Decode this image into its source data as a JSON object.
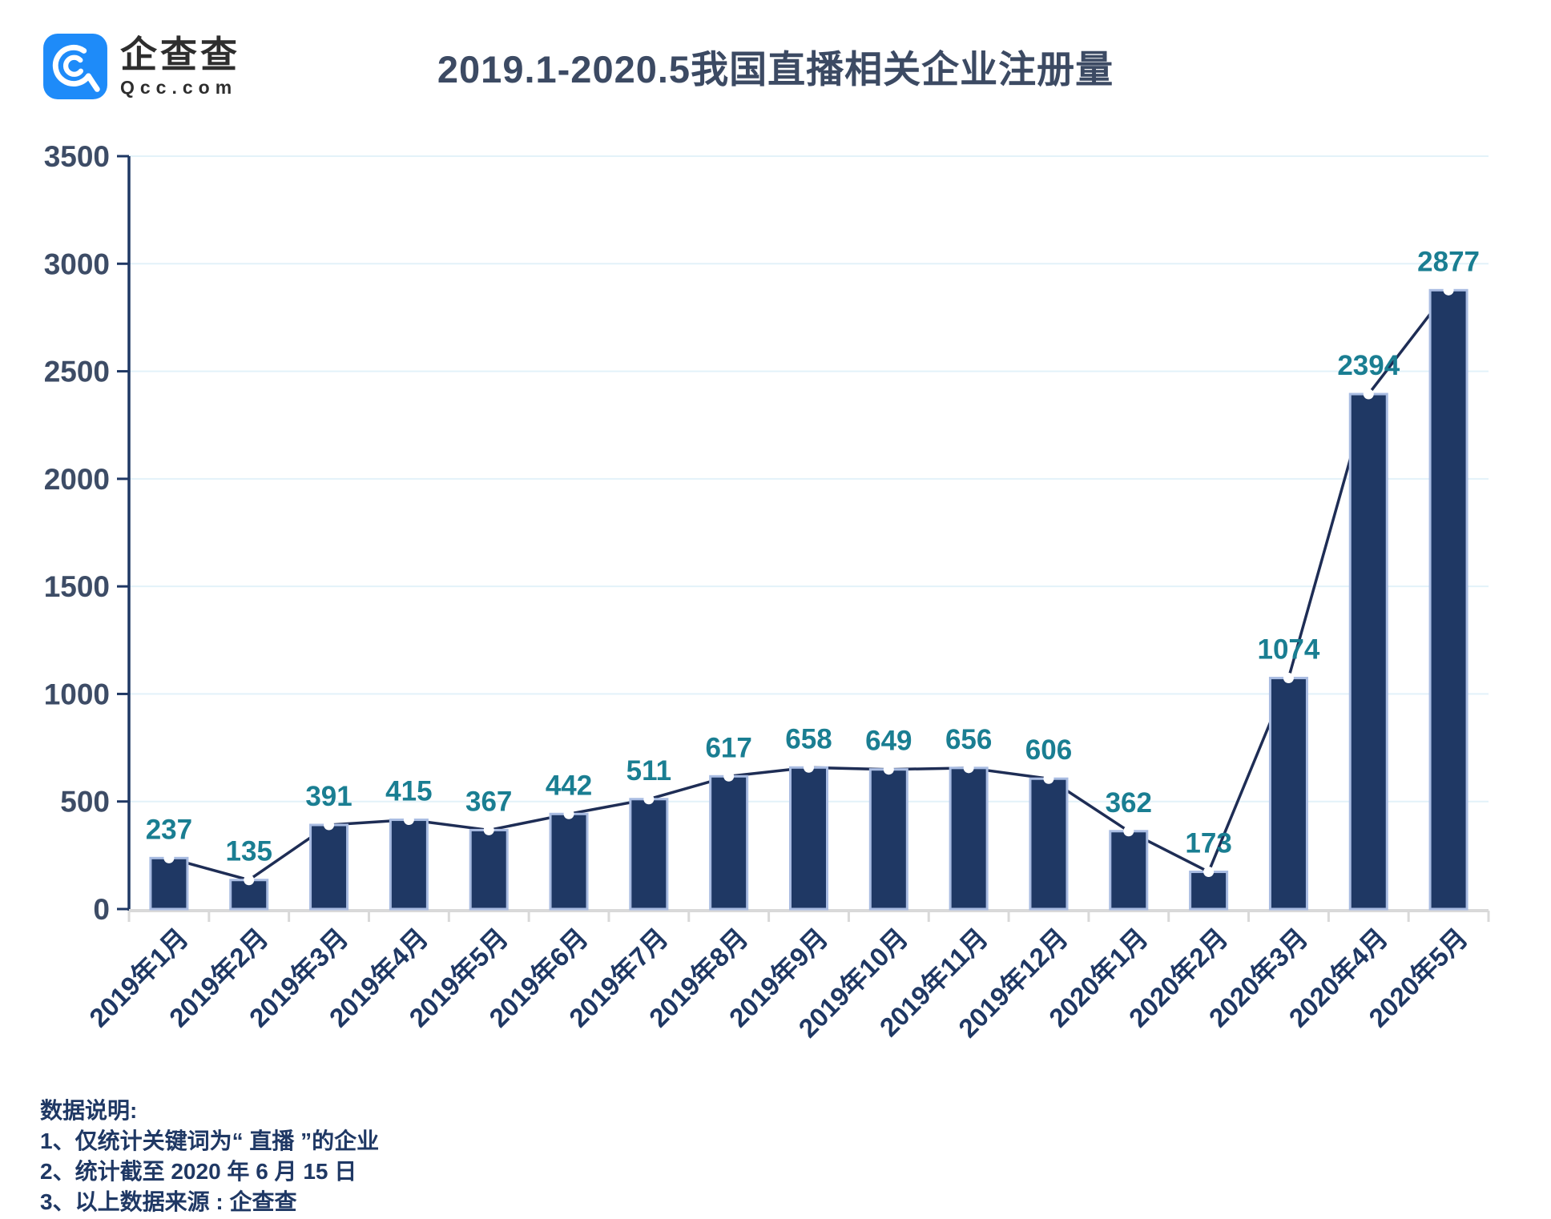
{
  "logo": {
    "name": "企查查",
    "domain": "Qcc.com"
  },
  "title": "2019.1-2020.5我国直播相关企业注册量",
  "chart_data": {
    "type": "bar",
    "overlay": "line",
    "title": "2019.1-2020.5我国直播相关企业注册量",
    "categories": [
      "2019年1月",
      "2019年2月",
      "2019年3月",
      "2019年4月",
      "2019年5月",
      "2019年6月",
      "2019年7月",
      "2019年8月",
      "2019年9月",
      "2019年10月",
      "2019年11月",
      "2019年12月",
      "2020年1月",
      "2020年2月",
      "2020年3月",
      "2020年4月",
      "2020年5月"
    ],
    "values": [
      237,
      135,
      391,
      415,
      367,
      442,
      511,
      617,
      658,
      649,
      656,
      606,
      362,
      173,
      1074,
      2394,
      2877
    ],
    "xlabel": "",
    "ylabel": "",
    "ylim": [
      0,
      3500
    ],
    "ytick_interval": 500,
    "yticks": [
      0,
      500,
      1000,
      1500,
      2000,
      2500,
      3000,
      3500
    ],
    "grid": true,
    "legend": "none",
    "colors": {
      "bar": "#1F3864",
      "bar_outline": "#A9BCE2",
      "line": "#1E2D55",
      "marker": "#FFFFFF",
      "value_label": "#1A7E92",
      "y_label": "#3D4C66",
      "x_label": "#1F3864",
      "gridline": "#E3F2F9",
      "baseline": "#D9D9D9",
      "axis": "#1F3864"
    }
  },
  "notes": {
    "heading": "数据说明:",
    "item1": "1、仅统计关键词为“ 直播 ”的企业",
    "item2": "2、统计截至 2020 年 6 月 15 日",
    "item3": "3、以上数据来源 : 企查查"
  }
}
